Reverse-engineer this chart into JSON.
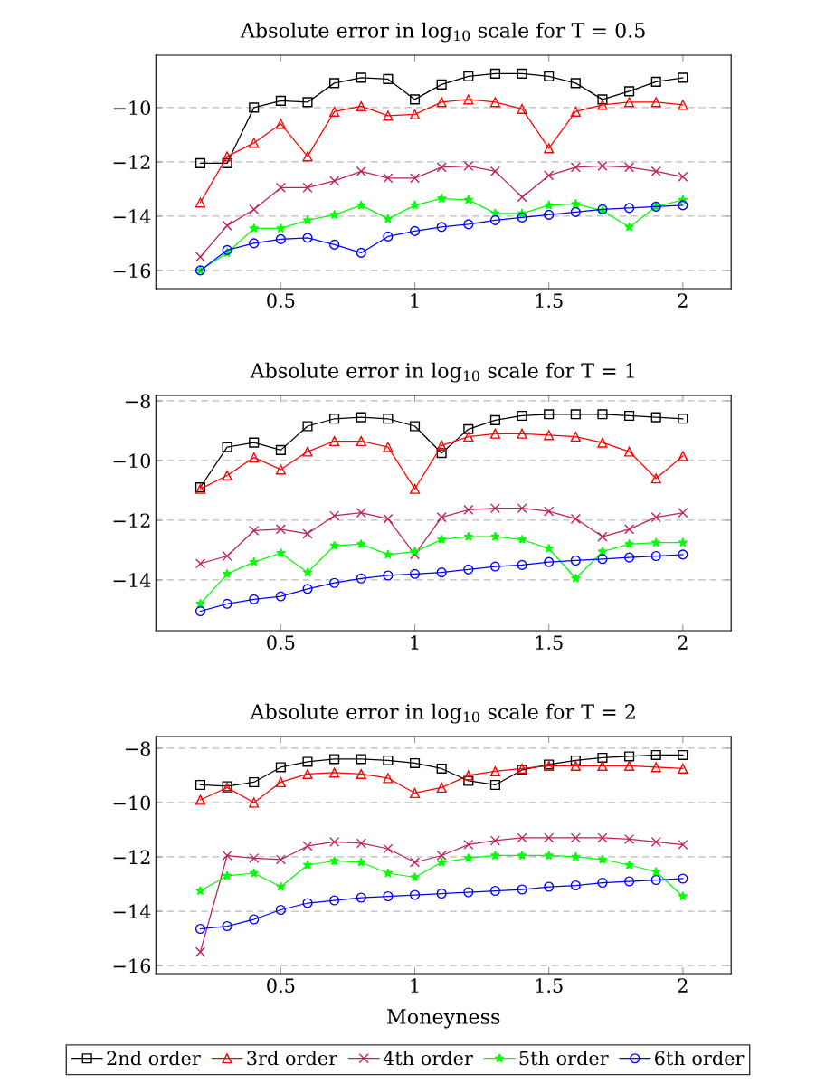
{
  "chart_data": [
    {
      "type": "line",
      "title": "Absolute error in log$_{10}$ scale for T = 0.5",
      "x": [
        0.2,
        0.3,
        0.4,
        0.5,
        0.6,
        0.7,
        0.8,
        0.9,
        1.0,
        1.1,
        1.2,
        1.3,
        1.4,
        1.5,
        1.6,
        1.7,
        1.8,
        1.9,
        2.0
      ],
      "xlim": [
        0.034,
        2.18
      ],
      "xticks": [
        0.5,
        1,
        1.5,
        2
      ],
      "ylim": [
        -16.67,
        -8.07
      ],
      "yticks": [
        -16,
        -14,
        -12,
        -10
      ],
      "grid": "y",
      "series": [
        {
          "color": "#000000",
          "marker": "square",
          "values": [
            -12.05,
            -12.05,
            -10,
            -9.75,
            -9.8,
            -9.1,
            -8.9,
            -8.95,
            -9.7,
            -9.15,
            -8.85,
            -8.75,
            -8.75,
            -8.85,
            -9.1,
            -9.7,
            -9.4,
            -9.05,
            -8.9
          ]
        },
        {
          "color": "#ff0000",
          "marker": "triangle",
          "values": [
            -13.5,
            -11.8,
            -11.3,
            -10.6,
            -11.8,
            -10.15,
            -9.95,
            -10.3,
            -10.25,
            -9.8,
            -9.7,
            -9.8,
            -10.05,
            -11.5,
            -10.15,
            -9.9,
            -9.8,
            -9.8,
            -9.9
          ]
        },
        {
          "color": "#bf1f5e",
          "marker": "cross",
          "values": [
            -15.5,
            -14.35,
            -13.75,
            -12.95,
            -12.95,
            -12.7,
            -12.35,
            -12.6,
            -12.6,
            -12.2,
            -12.15,
            -12.35,
            -13.3,
            -12.5,
            -12.2,
            -12.15,
            -12.2,
            -12.35,
            -12.55
          ]
        },
        {
          "color": "#00ff00",
          "marker": "star",
          "values": [
            -16,
            -15.35,
            -14.45,
            -14.45,
            -14.15,
            -13.95,
            -13.6,
            -14.1,
            -13.6,
            -13.35,
            -13.4,
            -13.9,
            -13.9,
            -13.6,
            -13.55,
            -13.8,
            -14.4,
            -13.65,
            -13.4
          ]
        },
        {
          "color": "#0000ff",
          "marker": "circle",
          "values": [
            -16,
            -15.25,
            -15.0,
            -14.85,
            -14.8,
            -15.05,
            -15.35,
            -14.75,
            -14.55,
            -14.4,
            -14.3,
            -14.15,
            -14.05,
            -13.95,
            -13.85,
            -13.75,
            -13.7,
            -13.65,
            -13.6
          ]
        }
      ]
    },
    {
      "type": "line",
      "title": "Absolute error in log$_{10}$ scale for T = 1",
      "x": [
        0.2,
        0.3,
        0.4,
        0.5,
        0.6,
        0.7,
        0.8,
        0.9,
        1.0,
        1.1,
        1.2,
        1.3,
        1.4,
        1.5,
        1.6,
        1.7,
        1.8,
        1.9,
        2.0
      ],
      "xlim": [
        0.034,
        2.18
      ],
      "xticks": [
        0.5,
        1,
        1.5,
        2
      ],
      "ylim": [
        -15.7,
        -7.82
      ],
      "yticks": [
        -14,
        -12,
        -10,
        -8
      ],
      "grid": "y",
      "series": [
        {
          "color": "#000000",
          "marker": "square",
          "values": [
            -10.9,
            -9.55,
            -9.4,
            -9.65,
            -8.85,
            -8.6,
            -8.55,
            -8.6,
            -8.85,
            -9.75,
            -8.95,
            -8.65,
            -8.5,
            -8.45,
            -8.45,
            -8.45,
            -8.5,
            -8.55,
            -8.6
          ]
        },
        {
          "color": "#ff0000",
          "marker": "triangle",
          "values": [
            -10.95,
            -10.5,
            -9.9,
            -10.3,
            -9.7,
            -9.35,
            -9.35,
            -9.55,
            -10.95,
            -9.5,
            -9.2,
            -9.1,
            -9.1,
            -9.15,
            -9.2,
            -9.4,
            -9.7,
            -10.6,
            -9.85
          ]
        },
        {
          "color": "#bf1f5e",
          "marker": "cross",
          "values": [
            -13.45,
            -13.2,
            -12.35,
            -12.3,
            -12.45,
            -11.85,
            -11.75,
            -11.95,
            -13.15,
            -11.9,
            -11.65,
            -11.6,
            -11.6,
            -11.7,
            -11.95,
            -12.55,
            -12.3,
            -11.9,
            -11.75
          ]
        },
        {
          "color": "#00ff00",
          "marker": "star",
          "values": [
            -14.8,
            -13.8,
            -13.4,
            -13.1,
            -13.75,
            -12.85,
            -12.8,
            -13.15,
            -13.05,
            -12.65,
            -12.55,
            -12.55,
            -12.65,
            -12.95,
            -13.95,
            -13.05,
            -12.8,
            -12.75,
            -12.75
          ]
        },
        {
          "color": "#0000ff",
          "marker": "circle",
          "values": [
            -15.05,
            -14.8,
            -14.65,
            -14.55,
            -14.3,
            -14.1,
            -13.95,
            -13.85,
            -13.8,
            -13.75,
            -13.65,
            -13.55,
            -13.5,
            -13.4,
            -13.35,
            -13.3,
            -13.25,
            -13.2,
            -13.15
          ]
        }
      ]
    },
    {
      "type": "line",
      "title": "Absolute error in log$_{10}$ scale for T = 2",
      "xlabel": "Moneyness",
      "x": [
        0.2,
        0.3,
        0.4,
        0.5,
        0.6,
        0.7,
        0.8,
        0.9,
        1.0,
        1.1,
        1.2,
        1.3,
        1.4,
        1.5,
        1.6,
        1.7,
        1.8,
        1.9,
        2.0
      ],
      "xlim": [
        0.034,
        2.18
      ],
      "xticks": [
        0.5,
        1,
        1.5,
        2
      ],
      "ylim": [
        -16.3,
        -7.57
      ],
      "yticks": [
        -16,
        -14,
        -12,
        -10,
        -8
      ],
      "grid": "y",
      "legend": "bottom",
      "series": [
        {
          "name": "2nd order",
          "color": "#000000",
          "marker": "square",
          "values": [
            -9.35,
            -9.4,
            -9.25,
            -8.7,
            -8.5,
            -8.4,
            -8.4,
            -8.45,
            -8.55,
            -8.75,
            -9.2,
            -9.35,
            -8.8,
            -8.6,
            -8.45,
            -8.35,
            -8.3,
            -8.25,
            -8.25
          ]
        },
        {
          "name": "3rd order",
          "color": "#ff0000",
          "marker": "triangle",
          "values": [
            -9.9,
            -9.45,
            -10.0,
            -9.25,
            -8.95,
            -8.9,
            -8.95,
            -9.1,
            -9.65,
            -9.45,
            -9.0,
            -8.85,
            -8.75,
            -8.65,
            -8.65,
            -8.65,
            -8.65,
            -8.7,
            -8.75
          ]
        },
        {
          "name": "4th order",
          "color": "#bf1f5e",
          "marker": "cross",
          "values": [
            -15.5,
            -11.95,
            -12.05,
            -12.1,
            -11.6,
            -11.45,
            -11.5,
            -11.7,
            -12.2,
            -11.95,
            -11.55,
            -11.4,
            -11.3,
            -11.3,
            -11.3,
            -11.3,
            -11.35,
            -11.45,
            -11.55
          ]
        },
        {
          "name": "5th order",
          "color": "#00ff00",
          "marker": "star",
          "values": [
            -13.25,
            -12.7,
            -12.6,
            -13.1,
            -12.3,
            -12.15,
            -12.2,
            -12.6,
            -12.75,
            -12.2,
            -12.05,
            -11.95,
            -11.95,
            -11.95,
            -12.0,
            -12.1,
            -12.3,
            -12.55,
            -13.45
          ]
        },
        {
          "name": "6th order",
          "color": "#0000ff",
          "marker": "circle",
          "values": [
            -14.65,
            -14.55,
            -14.3,
            -13.95,
            -13.7,
            -13.6,
            -13.5,
            -13.45,
            -13.4,
            -13.35,
            -13.3,
            -13.25,
            -13.2,
            -13.1,
            -13.05,
            -12.95,
            -12.9,
            -12.85,
            -12.8
          ]
        }
      ]
    }
  ]
}
